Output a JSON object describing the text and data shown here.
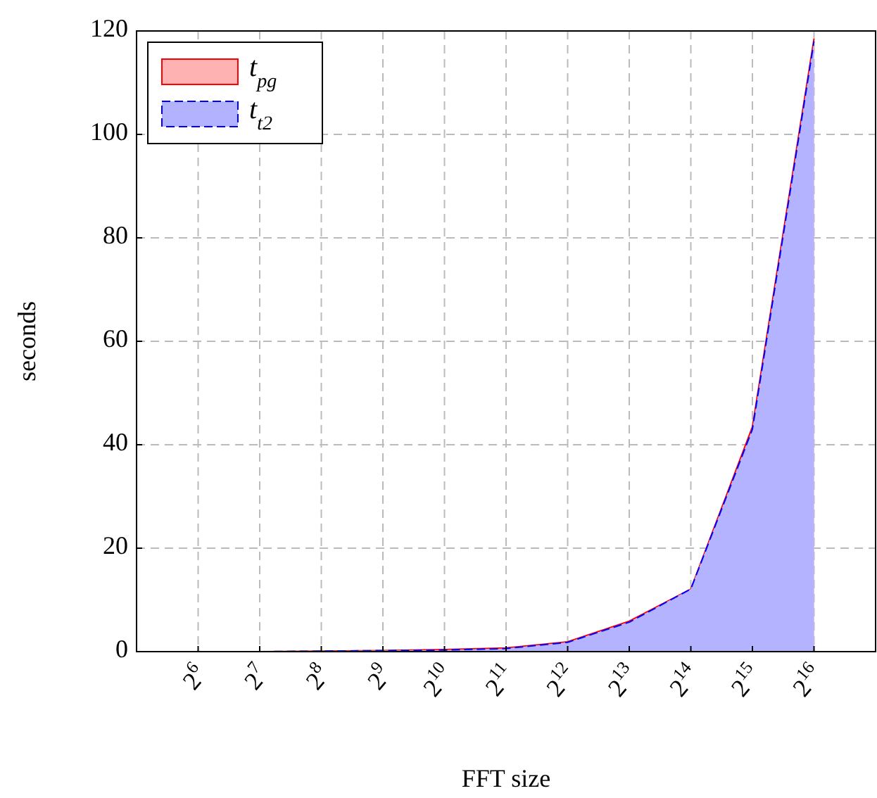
{
  "chart_data": {
    "type": "area",
    "xlabel": "FFT size",
    "ylabel": "seconds",
    "x": [
      64,
      128,
      256,
      512,
      1024,
      2048,
      4096,
      8192,
      16384,
      32768,
      65536
    ],
    "log": "x",
    "xlim": [
      32,
      131072
    ],
    "xticks": [
      {
        "value": 64,
        "label": "2$^{6}$"
      },
      {
        "value": 128,
        "label": "2$^{7}$"
      },
      {
        "value": 256,
        "label": "2$^{8}$"
      },
      {
        "value": 512,
        "label": "2$^{9}$"
      },
      {
        "value": 1024,
        "label": "2$^{10}$"
      },
      {
        "value": 2048,
        "label": "2$^{11}$"
      },
      {
        "value": 4096,
        "label": "2$^{12}$"
      },
      {
        "value": 8192,
        "label": "2$^{13}$"
      },
      {
        "value": 16384,
        "label": "2$^{14}$"
      },
      {
        "value": 32768,
        "label": "2$^{15}$"
      },
      {
        "value": 65536,
        "label": "2$^{16}$"
      }
    ],
    "ylim": [
      0,
      120
    ],
    "yticks": [
      0,
      20,
      40,
      60,
      80,
      100,
      120
    ],
    "grid": true,
    "legend": "top left",
    "series": [
      {
        "name": "t$_{pg}$",
        "color": "#ff0000",
        "line_style": "solid",
        "values": [
          0,
          0,
          0.1,
          0.2,
          0.4,
          0.7,
          1.9,
          5.9,
          12.1,
          43.5,
          118.5
        ]
      },
      {
        "name": "t$_{t2}$",
        "color": "#0000ff",
        "line_style": "dashed",
        "values": [
          0,
          0,
          0.1,
          0.2,
          0.3,
          0.6,
          1.8,
          5.7,
          12.1,
          43,
          118
        ]
      }
    ]
  }
}
